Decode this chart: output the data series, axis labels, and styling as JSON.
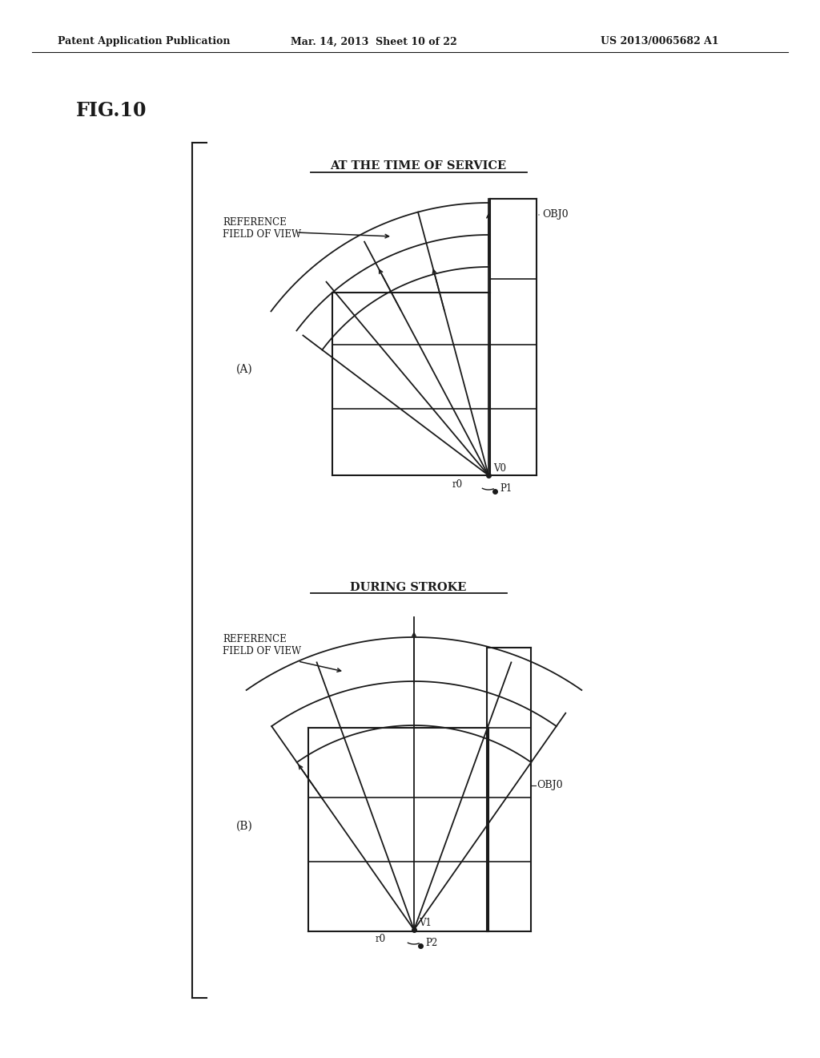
{
  "header_left": "Patent Application Publication",
  "header_mid": "Mar. 14, 2013  Sheet 10 of 22",
  "header_right": "US 2013/0065682 A1",
  "fig_label": "FIG.10",
  "title_A": "AT THE TIME OF SERVICE",
  "title_B": "DURING STROKE",
  "label_A": "(A)",
  "label_B": "(B)",
  "ref_fov_label_A": "REFERENCE\nFIELD OF VIEW",
  "ref_fov_label_B": "REFERENCE\nFIELD OF VIEW",
  "obj0_label": "OBJ0",
  "v0_label": "V0",
  "v1_label": "V1",
  "r0_label_A": "r0",
  "r0_label_B": "r0",
  "p1_label": "P1",
  "p2_label": "P2",
  "bg_color": "#ffffff",
  "line_color": "#1a1a1a"
}
